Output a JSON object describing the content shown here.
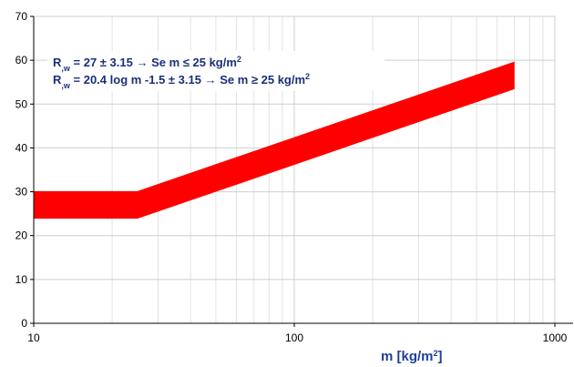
{
  "chart_data": {
    "type": "band",
    "x": [
      10,
      25,
      700
    ],
    "upper": [
      30.15,
      30.15,
      59.7
    ],
    "lower": [
      23.85,
      23.85,
      53.4
    ],
    "color": "#ff0000",
    "xscale": "log",
    "xlim": [
      10,
      1000
    ],
    "xticks": [
      10,
      100,
      1000
    ],
    "xminor": [
      20,
      30,
      40,
      50,
      60,
      70,
      80,
      90,
      200,
      300,
      400,
      500,
      600,
      700,
      800,
      900
    ],
    "ylim": [
      0,
      70
    ],
    "yticks": [
      0,
      10,
      20,
      30,
      40,
      50,
      60,
      70
    ],
    "grid": true,
    "xlabel": [
      "m [kg/m",
      {
        "sup": "2"
      },
      "]"
    ],
    "annotations": [
      [
        "R",
        {
          "sub": ",w"
        },
        " = 27 ± 3.15 → Se m ≤ 25 kg/m",
        {
          "sup": "2"
        }
      ],
      [
        "R",
        {
          "sub": ",w"
        },
        " = 20.4 log m -1.5 ± 3.15 → Se m ≥ 25 kg/m",
        {
          "sup": "2"
        }
      ]
    ]
  }
}
